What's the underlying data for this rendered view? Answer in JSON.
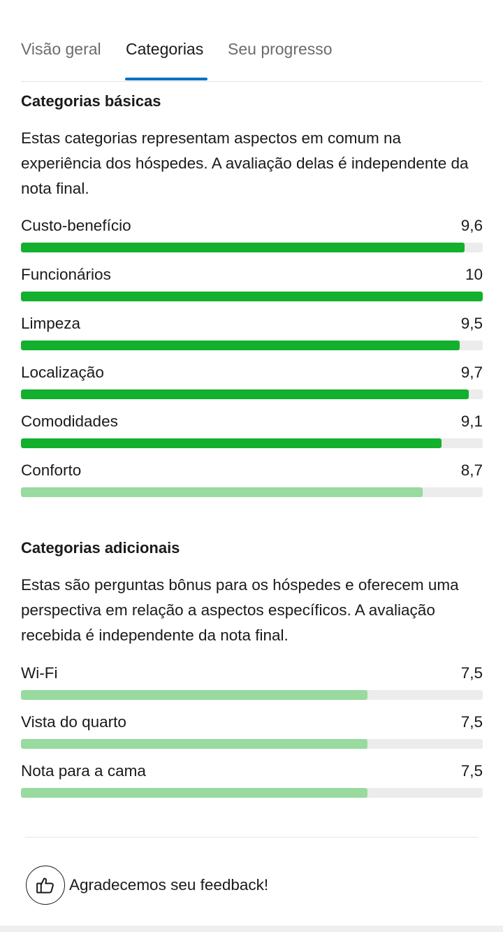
{
  "tabs": [
    {
      "label": "Visão geral",
      "active": false
    },
    {
      "label": "Categorias",
      "active": true
    },
    {
      "label": "Seu progresso",
      "active": false
    }
  ],
  "basic": {
    "title": "Categorias básicas",
    "description": "Estas categorias representam aspectos em comum na experiência dos hóspedes. A avaliação delas é independente da nota final.",
    "items": [
      {
        "label": "Custo-benefício",
        "score": "9,6",
        "value": 9.6
      },
      {
        "label": "Funcionários",
        "score": "10",
        "value": 10
      },
      {
        "label": "Limpeza",
        "score": "9,5",
        "value": 9.5
      },
      {
        "label": "Localização",
        "score": "9,7",
        "value": 9.7
      },
      {
        "label": "Comodidades",
        "score": "9,1",
        "value": 9.1
      },
      {
        "label": "Conforto",
        "score": "8,7",
        "value": 8.7
      }
    ]
  },
  "additional": {
    "title": "Categorias adicionais",
    "description": "Estas são perguntas bônus para os hóspedes e oferecem uma perspectiva em relação a aspectos específicos. A avaliação recebida é independente da nota final.",
    "items": [
      {
        "label": "Wi-Fi",
        "score": "7,5",
        "value": 7.5
      },
      {
        "label": "Vista do quarto",
        "score": "7,5",
        "value": 7.5
      },
      {
        "label": "Nota para a cama",
        "score": "7,5",
        "value": 7.5
      }
    ]
  },
  "scale_max": 10,
  "colors": {
    "high": "#12b02c",
    "low": "#98da9f",
    "track": "#ececec",
    "tab_active_underline": "#0071c2"
  },
  "feedback": {
    "icon": "thumbs-up-icon",
    "text": "Agradecemos seu feedback!"
  }
}
